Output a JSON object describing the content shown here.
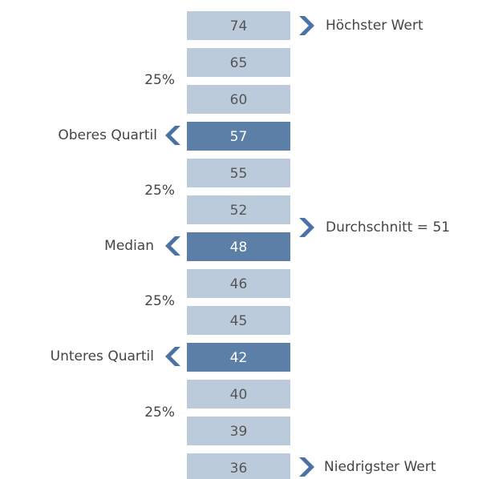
{
  "cells": [
    {
      "value": 74,
      "highlight": false
    },
    {
      "value": 65,
      "highlight": false
    },
    {
      "value": 60,
      "highlight": false
    },
    {
      "value": 57,
      "highlight": true
    },
    {
      "value": 55,
      "highlight": false
    },
    {
      "value": 52,
      "highlight": false
    },
    {
      "value": 48,
      "highlight": true
    },
    {
      "value": 46,
      "highlight": false
    },
    {
      "value": 45,
      "highlight": false
    },
    {
      "value": 42,
      "highlight": true
    },
    {
      "value": 40,
      "highlight": false
    },
    {
      "value": 39,
      "highlight": false
    },
    {
      "value": 36,
      "highlight": false
    }
  ],
  "left_labels": [
    "25%",
    "Oberes Quartil",
    "25%",
    "Median",
    "25%",
    "Unteres Quartil",
    "25%"
  ],
  "right_labels": [
    "Höchster Wert",
    "Durchschnitt = 51",
    "Niedrigster Wert"
  ]
}
